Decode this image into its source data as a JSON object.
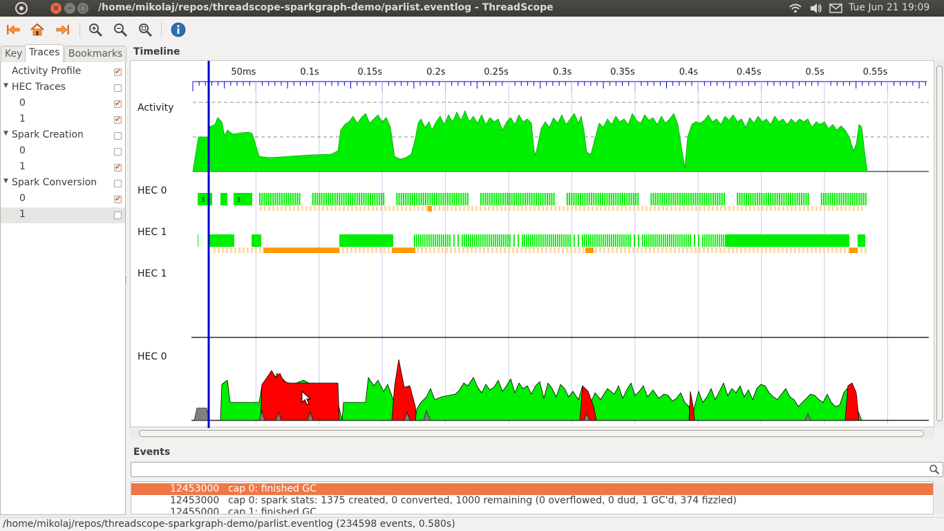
{
  "window": {
    "title": "/home/mikolaj/repos/threadscope-sparkgraph-demo/parlist.eventlog - ThreadScope",
    "clock": "Tue Jun 21 19:09"
  },
  "toolbar": {
    "items": [
      "first-event",
      "home",
      "last-event",
      "zoom-in",
      "zoom-out",
      "zoom-fit",
      "info"
    ]
  },
  "sidebar": {
    "tabs": [
      "Key",
      "Traces",
      "Bookmarks"
    ],
    "active_tab": "Traces",
    "tree": [
      {
        "label": "Activity Profile",
        "checked": true,
        "level": 0,
        "expander": false
      },
      {
        "label": "HEC Traces",
        "checked": false,
        "level": 0,
        "expander": true
      },
      {
        "label": "0",
        "checked": true,
        "level": 1,
        "expander": false
      },
      {
        "label": "1",
        "checked": true,
        "level": 1,
        "expander": false
      },
      {
        "label": "Spark Creation",
        "checked": false,
        "level": 0,
        "expander": true
      },
      {
        "label": "0",
        "checked": false,
        "level": 1,
        "expander": false
      },
      {
        "label": "1",
        "checked": true,
        "level": 1,
        "expander": false
      },
      {
        "label": "Spark Conversion",
        "checked": false,
        "level": 0,
        "expander": true
      },
      {
        "label": "0",
        "checked": true,
        "level": 1,
        "expander": false
      },
      {
        "label": "1",
        "checked": false,
        "level": 1,
        "expander": false,
        "selected": true
      }
    ]
  },
  "timeline": {
    "heading": "Timeline",
    "ticks": [
      "50ms",
      "0.1s",
      "0.15s",
      "0.2s",
      "0.25s",
      "0.3s",
      "0.35s",
      "0.4s",
      "0.45s",
      "0.5s",
      "0.55s"
    ],
    "traces": [
      "Activity",
      "HEC 0",
      "HEC 1",
      "HEC 1",
      "HEC 0"
    ],
    "hec0_badges": [
      "3",
      "3"
    ],
    "colors": {
      "running": "#00ee00",
      "gc": "#ff9900",
      "fizzled": "#ff0000",
      "converted_grey": "#808080",
      "cursor": "#0000cc",
      "ruler": "#0000cc"
    }
  },
  "events": {
    "heading": "Events",
    "rows": [
      {
        "time": "12453000",
        "desc": "cap 0: finished GC",
        "selected": true
      },
      {
        "time": "12453000",
        "desc": "cap 0: spark stats: 1375 created, 0 converted, 1000 remaining (0 overflowed, 0 dud, 1 GC'd, 374 fizzled)",
        "selected": false
      },
      {
        "time": "12455000",
        "desc": "cap 1: finished GC",
        "selected": false
      }
    ]
  },
  "status": "/home/mikolaj/repos/threadscope-sparkgraph-demo/parlist.eventlog (234598 events, 0.580s)"
}
